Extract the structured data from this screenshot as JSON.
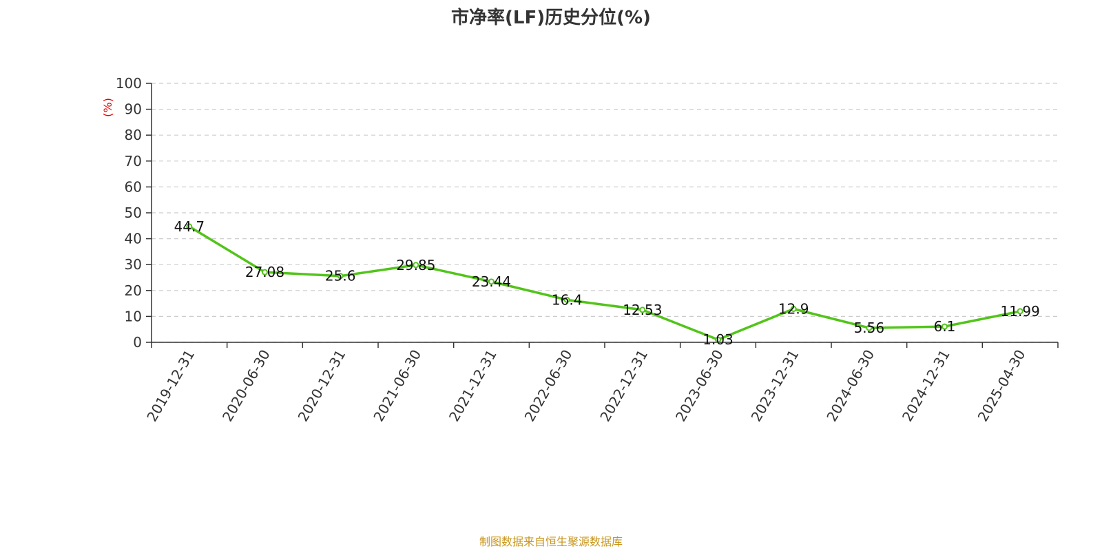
{
  "chart_data": {
    "type": "line",
    "title": "市净率(LF)历史分位(%)",
    "ylabel": "(%)",
    "xlabel": "",
    "ylim": [
      0,
      100
    ],
    "yticks": [
      0,
      10,
      20,
      30,
      40,
      50,
      60,
      70,
      80,
      90,
      100
    ],
    "grid": true,
    "categories": [
      "2019-12-31",
      "2020-06-30",
      "2020-12-31",
      "2021-06-30",
      "2021-12-31",
      "2022-06-30",
      "2022-12-31",
      "2023-06-30",
      "2023-12-31",
      "2024-06-30",
      "2024-12-31",
      "2025-04-30"
    ],
    "series": [
      {
        "values": [
          44.7,
          27.08,
          25.6,
          29.85,
          23.44,
          16.4,
          12.53,
          1.03,
          12.9,
          5.56,
          6.1,
          11.99
        ],
        "labels": [
          "44.7",
          "27.08",
          "25.6",
          "29.85",
          "23.44",
          "16.4",
          "12.53",
          "1.03",
          "12.9",
          "5.56",
          "6.1",
          "11.99"
        ],
        "color": "#52c41a"
      }
    ],
    "source": "制图数据来自恒生聚源数据库"
  },
  "colors": {
    "line": "#52c41a",
    "ylabel": "#e60000",
    "source": "#c8961e",
    "grid": "#cccccc",
    "axis": "#333333"
  }
}
